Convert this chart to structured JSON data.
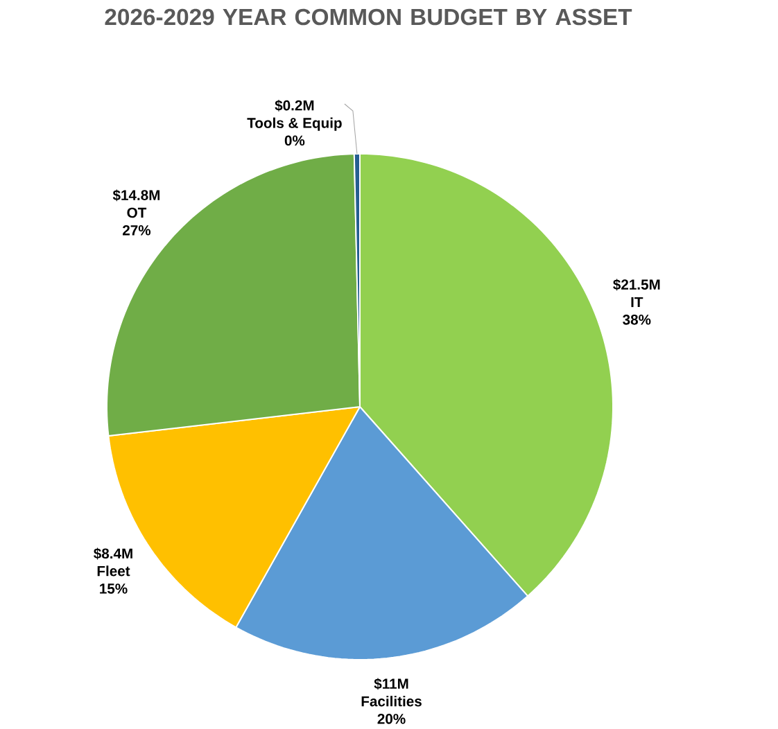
{
  "chart_data": {
    "type": "pie",
    "title": "2026-2029 YEAR COMMON BUDGET BY ASSET",
    "categories": [
      "IT",
      "Facilities",
      "Fleet",
      "OT",
      "Tools & Equip"
    ],
    "values": [
      21.5,
      11,
      8.4,
      14.8,
      0.2
    ],
    "colors": [
      "#92d050",
      "#5b9bd5",
      "#ffc000",
      "#70ad47",
      "#255e91"
    ],
    "value_labels": [
      "$21.5M",
      "$11M",
      "$8.4M",
      "$14.8M",
      "$0.2M"
    ],
    "annotations": [
      "38%",
      "20%",
      "15%",
      "27%",
      "0%"
    ]
  }
}
